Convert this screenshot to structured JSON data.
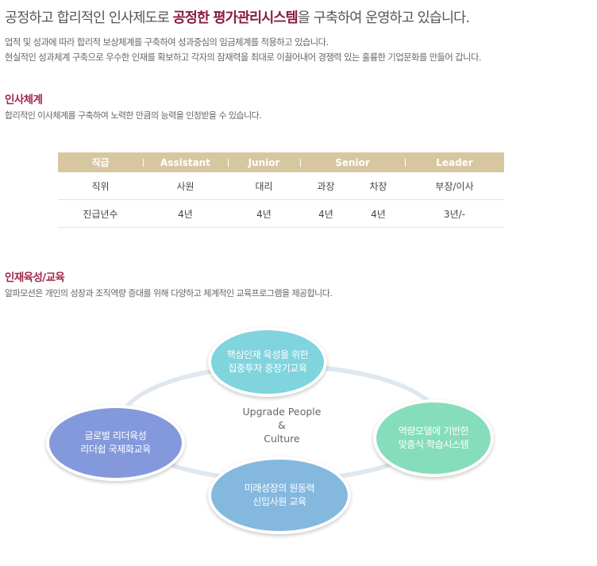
{
  "headline": {
    "prefix": "공정하고 합리적인 인사제도로 ",
    "emphasis": "공정한 평가관리시스템",
    "suffix": "을 구축하여 운영하고 있습니다."
  },
  "intro": {
    "line1": "업적 및 성과에 따라 합리적 보상체계를 구축하여 성과중심의 임금체계를 적용하고 있습니다.",
    "line2": "현실적인 성과체계 구축으로 우수한 인재를 확보하고 각자의 잠재력을 최대로 이끌어내어 경쟁력 있는 훌륭한 기업문화를 만들어 갑니다."
  },
  "hr_system": {
    "title": "인사체계",
    "description": "합리적인 이사체계를 구축하여 노력한 만큼의 능력을 인정받을 수 있습니다.",
    "table": {
      "headers": [
        "직급",
        "Assistant",
        "Junior",
        "Senior",
        "Leader"
      ],
      "rows": [
        {
          "label": "직위",
          "cells": [
            "사원",
            "대리",
            "과장",
            "차장",
            "부장/이사"
          ]
        },
        {
          "label": "진급년수",
          "cells": [
            "4년",
            "4년",
            "4년",
            "4년",
            "3년/-"
          ]
        }
      ]
    }
  },
  "education": {
    "title": "인재육성/교육",
    "description": "알파모션은 개인의 성장과 조직역량 증대를 위해 다양하고 체계적인 교육프로그램을 제공합니다.",
    "center": {
      "line1": "Upgrade People",
      "line2": "&",
      "line3": "Culture"
    },
    "nodes": {
      "top": {
        "line1": "핵심인재 육성을 위한",
        "line2": "집중투자 중장기교육",
        "color": "#7fd4de"
      },
      "right": {
        "line1": "역량모델에 기반한",
        "line2": "맞춤식 학습시스템",
        "color": "#86ddbb"
      },
      "left": {
        "line1": "글로벌 리더육성",
        "line2": "리더쉽 국제화교육",
        "color": "#8499dc"
      },
      "bottom": {
        "line1": "미래성장의 원동력",
        "line2": "신입사원 교육",
        "color": "#85b8df"
      }
    }
  },
  "colors": {
    "accent": "#8a1c3b",
    "table_header": "#d7c7a1",
    "ring": "#dfe7ef"
  }
}
